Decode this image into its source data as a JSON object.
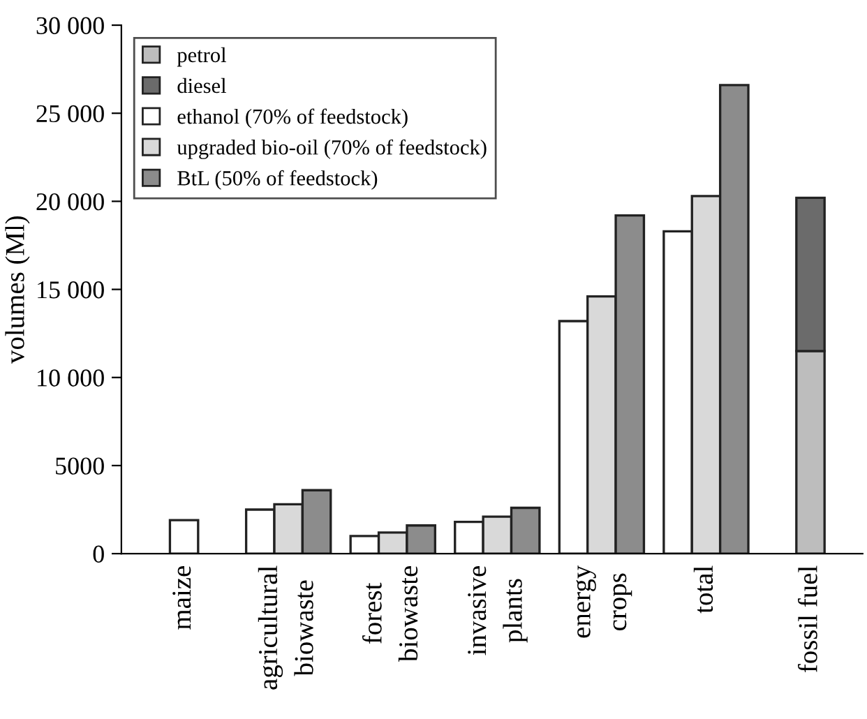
{
  "chart_data": {
    "type": "bar",
    "ylabel": "volumes (Ml)",
    "categories": [
      "maize",
      "agricultural\nbiowaste",
      "forest\nbiowaste",
      "invasive\nplants",
      "energy\ncrops",
      "total",
      "fossil fuel"
    ],
    "series": [
      {
        "name": "petrol",
        "color": "#bdbdbd",
        "values": [
          null,
          null,
          null,
          null,
          null,
          null,
          11500
        ]
      },
      {
        "name": "diesel",
        "color": "#6b6b6b",
        "base": [
          null,
          null,
          null,
          null,
          null,
          null,
          11500
        ],
        "values": [
          null,
          null,
          null,
          null,
          null,
          null,
          8700
        ]
      },
      {
        "name": "ethanol (70% of feedstock)",
        "color": "#ffffff",
        "values": [
          1900,
          2500,
          1000,
          1800,
          13200,
          18300,
          null
        ]
      },
      {
        "name": "upgraded bio-oil (70% of feedstock)",
        "color": "#d9d9d9",
        "values": [
          null,
          2800,
          1200,
          2100,
          14600,
          20300,
          null
        ]
      },
      {
        "name": "BtL (50% of feedstock)",
        "color": "#8c8c8c",
        "values": [
          null,
          3600,
          1600,
          2600,
          19200,
          26600,
          null
        ]
      }
    ],
    "ylim": [
      0,
      30000
    ],
    "yticks": [
      0,
      5000,
      {
        "value": 10000,
        "label": "10 000"
      },
      {
        "value": 15000,
        "label": "15 000"
      },
      {
        "value": 20000,
        "label": "20 000"
      },
      {
        "value": 25000,
        "label": "25 000"
      },
      {
        "value": 30000,
        "label": "30 000"
      }
    ],
    "grid": false,
    "legend": "top left"
  }
}
